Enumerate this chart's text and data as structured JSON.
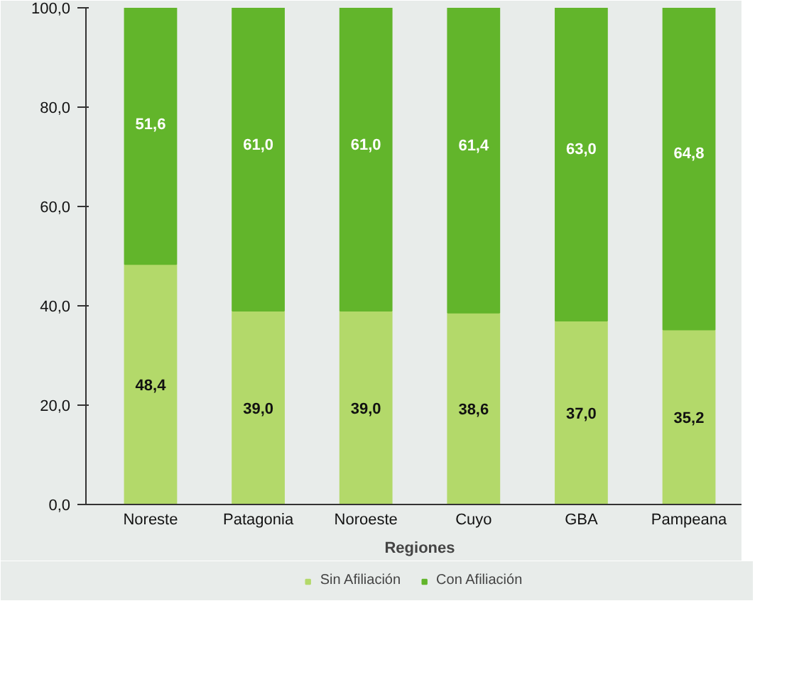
{
  "chart_data": {
    "type": "bar",
    "stacked": true,
    "xlabel": "Regiones",
    "categories": [
      "Noreste",
      "Patagonia",
      "Noroeste",
      "Cuyo",
      "GBA",
      "Pampeana"
    ],
    "series": [
      {
        "name": "Sin Afiliación",
        "color": "#b3d96a",
        "values": [
          48.4,
          39.0,
          39.0,
          38.6,
          37.0,
          35.2
        ],
        "value_labels": [
          "48,4",
          "39,0",
          "39,0",
          "38,6",
          "37,0",
          "35,2"
        ]
      },
      {
        "name": "Con Afiliación",
        "color": "#62b52b",
        "values": [
          51.6,
          61.0,
          61.0,
          61.4,
          63.0,
          64.8
        ],
        "value_labels": [
          "51,6",
          "61,0",
          "61,0",
          "61,4",
          "63,0",
          "64,8"
        ]
      }
    ],
    "ylim": [
      0,
      100
    ],
    "yticks": [
      {
        "value": 0,
        "label": "0,0"
      },
      {
        "value": 20,
        "label": "20,0"
      },
      {
        "value": 40,
        "label": "40,0"
      },
      {
        "value": 60,
        "label": "60,0"
      },
      {
        "value": 80,
        "label": "80,0"
      },
      {
        "value": 100,
        "label": "100,0"
      }
    ],
    "grid": false,
    "legend": "bottom"
  }
}
